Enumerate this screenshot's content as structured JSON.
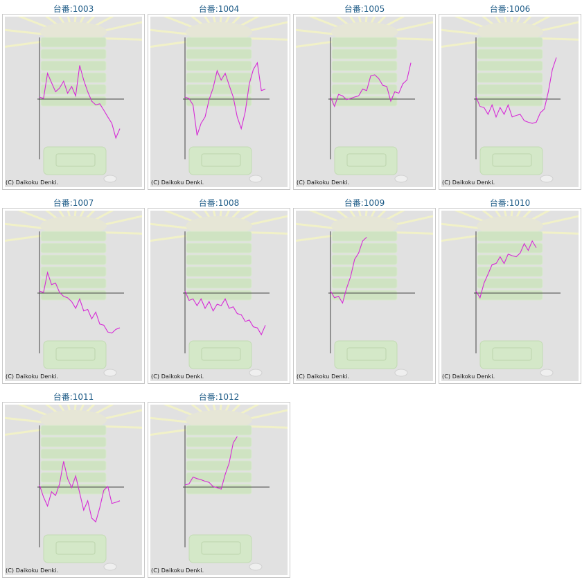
{
  "copyright": "(C) Daikoku Denki.",
  "colors": {
    "title": "#1c5a86",
    "line": "#d62ad6",
    "axis": "#444444",
    "panel": "#e1e1e1"
  },
  "machines": [
    {
      "label": "台番:1003",
      "trend": [
        0,
        0.1,
        0.9,
        0.7,
        0.2,
        0.5,
        0.6,
        0.3,
        0.4,
        0.2,
        1.2,
        0.8,
        0.2,
        0.0,
        -0.3,
        -0.1,
        -0.5,
        -0.6,
        -1.0,
        -1.4,
        -1.2
      ]
    },
    {
      "label": "台番:1004",
      "trend": [
        0,
        0.1,
        -0.3,
        -1.3,
        -1.0,
        -0.6,
        -0.1,
        0.5,
        1.0,
        0.8,
        0.9,
        0.6,
        0.0,
        -0.6,
        -1.2,
        -0.4,
        0.5,
        1.2,
        1.3,
        0.4,
        0.3
      ]
    },
    {
      "label": "台番:1005",
      "trend": [
        0,
        -0.2,
        0.1,
        0.2,
        -0.1,
        0.1,
        0.0,
        0.2,
        0.3,
        0.4,
        0.8,
        1.0,
        0.7,
        0.6,
        0.4,
        0.0,
        0.2,
        0.3,
        0.5,
        0.8,
        1.3
      ]
    },
    {
      "label": "台番:1006",
      "trend": [
        0,
        -0.2,
        -0.4,
        -0.5,
        -0.3,
        -0.6,
        -0.4,
        -0.5,
        -0.3,
        -0.6,
        -0.7,
        -0.5,
        -0.9,
        -0.8,
        -1.0,
        -0.8,
        -0.6,
        -0.3,
        0.2,
        1.2,
        1.5
      ]
    },
    {
      "label": "台番:1007",
      "trend": [
        0,
        0.1,
        0.7,
        0.4,
        0.3,
        0.1,
        -0.2,
        -0.1,
        -0.4,
        -0.5,
        -0.3,
        -0.6,
        -0.7,
        -0.9,
        -0.8,
        -1.1,
        -1.3,
        -1.4,
        -1.6,
        -1.3,
        -1.4
      ]
    },
    {
      "label": "台番:1008",
      "trend": [
        0,
        -0.2,
        -0.3,
        -0.4,
        -0.3,
        -0.5,
        -0.4,
        -0.6,
        -0.5,
        -0.4,
        -0.3,
        -0.5,
        -0.6,
        -0.7,
        -0.9,
        -1.0,
        -1.1,
        -1.2,
        -1.4,
        -1.5,
        -1.3
      ]
    },
    {
      "label": "台番:1009",
      "trend": [
        0,
        -0.1,
        -0.2,
        -0.3,
        0.1,
        0.7,
        1.2,
        1.6,
        1.9,
        2.2
      ]
    },
    {
      "label": "台番:1010",
      "trend": [
        0,
        -0.1,
        0.3,
        0.8,
        1.0,
        1.2,
        1.3,
        1.2,
        1.4,
        1.5,
        1.3,
        1.6,
        1.8,
        1.7,
        1.9,
        1.8
      ]
    },
    {
      "label": "台番:1011",
      "trend": [
        0,
        -0.3,
        -0.8,
        -0.1,
        -0.4,
        0.2,
        0.9,
        0.4,
        -0.1,
        0.5,
        -0.3,
        -0.8,
        -0.6,
        -1.1,
        -1.4,
        -0.7,
        -0.2,
        0.1,
        -0.7,
        -0.5,
        -0.6
      ]
    },
    {
      "label": "台番:1012",
      "trend": [
        0,
        0.2,
        0.3,
        0.4,
        0.2,
        0.3,
        0.1,
        0.1,
        -0.1,
        0.0,
        0.4,
        1.0,
        1.6,
        2.0
      ]
    }
  ]
}
